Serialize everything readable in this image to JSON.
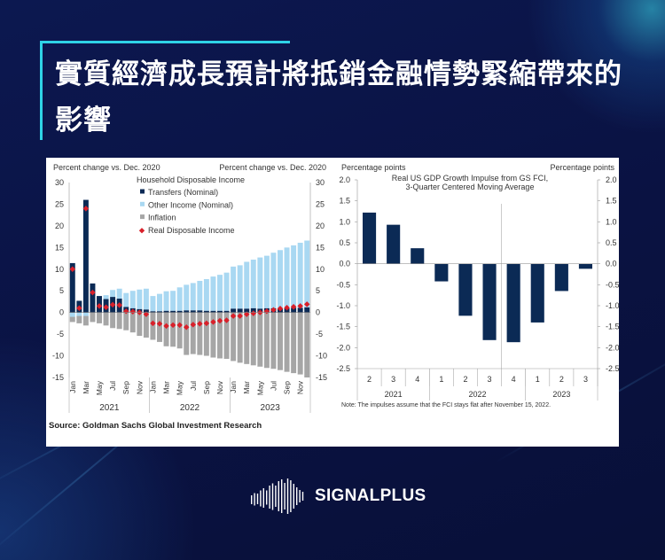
{
  "title": "實質經濟成長預計將抵銷金融情勢緊縮帶來的影響",
  "brand": {
    "name": "SIGNALPLUS",
    "accent_color": "#2fd3e6",
    "background_color": "#0a1242"
  },
  "source": "Source: Goldman Sachs Global Investment Research",
  "chart_data": [
    {
      "type": "bar",
      "stacked": true,
      "title": "Household Disposable Income",
      "ylabel_left": "Percent change vs. Dec. 2020",
      "ylabel_right": "Percent change vs. Dec. 2020",
      "ylim": [
        -15,
        30
      ],
      "yticks": [
        -15,
        -10,
        -5,
        0,
        5,
        10,
        15,
        20,
        25,
        30
      ],
      "x_tick_labels": [
        "Jan",
        "",
        "Mar",
        "",
        "May",
        "",
        "Jul",
        "",
        "Sep",
        "",
        "Nov",
        "",
        "Jan",
        "",
        "Mar",
        "",
        "May",
        "",
        "Jul",
        "",
        "Sep",
        "",
        "Nov",
        "",
        "Jan",
        "",
        "Mar",
        "",
        "May",
        "",
        "Jul",
        "",
        "Sep",
        "",
        "Nov",
        ""
      ],
      "years": [
        "2021",
        "2022",
        "2023"
      ],
      "legend_position": "top-center",
      "series": [
        {
          "name": "Transfers (Nominal)",
          "kind": "bar",
          "color": "#0b2a55",
          "values": [
            11.4,
            2.7,
            26.0,
            6.7,
            3.8,
            3.1,
            3.6,
            3.2,
            1.3,
            1.0,
            0.8,
            0.7,
            0.3,
            0.3,
            0.4,
            0.4,
            0.4,
            0.5,
            0.5,
            0.5,
            0.4,
            0.4,
            0.4,
            0.4,
            0.9,
            0.9,
            0.9,
            1.0,
            0.9,
            1.0,
            1.0,
            1.0,
            1.0,
            1.1,
            1.1,
            1.2
          ]
        },
        {
          "name": "Other Income (Nominal)",
          "kind": "bar",
          "color": "#a9d8f2",
          "values": [
            -1.0,
            -0.8,
            -0.8,
            0,
            0,
            0.9,
            1.6,
            2.3,
            3.2,
            4.0,
            4.5,
            4.8,
            3.5,
            4.0,
            4.5,
            4.6,
            5.4,
            5.9,
            6.3,
            6.8,
            7.3,
            7.9,
            8.3,
            8.8,
            9.7,
            10.0,
            10.8,
            11.2,
            11.8,
            12.1,
            12.8,
            13.4,
            14.0,
            14.4,
            15.0,
            15.4
          ]
        },
        {
          "name": "Inflation",
          "kind": "bar",
          "color": "#a6a6a6",
          "values": [
            -1.2,
            -1.7,
            -2.2,
            -2.2,
            -2.5,
            -3.0,
            -3.6,
            -3.8,
            -4.1,
            -4.6,
            -5.4,
            -5.8,
            -6.3,
            -6.8,
            -7.8,
            -7.9,
            -8.3,
            -9.8,
            -9.6,
            -9.8,
            -10.0,
            -10.4,
            -10.6,
            -10.7,
            -11.2,
            -11.6,
            -11.9,
            -12.2,
            -12.5,
            -12.8,
            -13.0,
            -13.3,
            -13.7,
            -14.0,
            -14.3,
            -15.0
          ]
        },
        {
          "name": "Real Disposable Income",
          "kind": "marker",
          "color": "#d9202a",
          "values": [
            10.0,
            1.0,
            24.0,
            4.6,
            1.5,
            1.2,
            1.8,
            1.7,
            0.3,
            0.2,
            0.0,
            -0.4,
            -2.5,
            -2.6,
            -3.1,
            -2.9,
            -2.9,
            -3.4,
            -2.8,
            -2.6,
            -2.5,
            -2.2,
            -1.9,
            -1.8,
            -0.8,
            -0.8,
            -0.4,
            -0.2,
            0.0,
            0.3,
            0.6,
            0.9,
            1.1,
            1.3,
            1.5,
            1.9
          ]
        }
      ]
    },
    {
      "type": "bar",
      "title": "Real US GDP Growth Impulse from GS FCI,",
      "subtitle": "3-Quarter Centered Moving Average",
      "ylabel_left": "Percentage points",
      "ylabel_right": "Percentage points",
      "ylim": [
        -2.5,
        2.0
      ],
      "yticks": [
        -2.5,
        -2.0,
        -1.5,
        -1.0,
        -0.5,
        0.0,
        0.5,
        1.0,
        1.5,
        2.0
      ],
      "categories": [
        "2",
        "3",
        "4",
        "1",
        "2",
        "3",
        "4",
        "1",
        "2",
        "3"
      ],
      "years": [
        {
          "label": "2021",
          "quarters": 3
        },
        {
          "label": "2022",
          "quarters": 4
        },
        {
          "label": "2023",
          "quarters": 3
        }
      ],
      "values": [
        1.22,
        0.93,
        0.37,
        -0.42,
        -1.24,
        -1.82,
        -1.87,
        -1.4,
        -0.65,
        -0.12
      ],
      "color": "#0b2a55",
      "note": "Note: The impulses assume that the FCI stays flat after November 15, 2022."
    }
  ]
}
